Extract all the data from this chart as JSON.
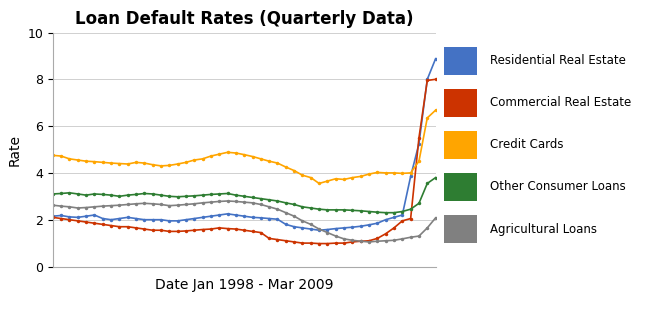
{
  "title": "Loan Default Rates (Quarterly Data)",
  "xlabel": "Date Jan 1998 - Mar 2009",
  "ylabel": "Rate",
  "ylim": [
    0,
    10
  ],
  "yticks": [
    0,
    2,
    4,
    6,
    8,
    10
  ],
  "title_fontsize": 12,
  "xlabel_fontsize": 10,
  "ylabel_fontsize": 10,
  "legend_fontsize": 9,
  "series": {
    "Residential Real Estate": {
      "color": "#4472C4",
      "data": [
        2.15,
        2.18,
        2.12,
        2.1,
        2.15,
        2.2,
        2.05,
        2.0,
        2.05,
        2.1,
        2.05,
        2.0,
        2.0,
        2.0,
        1.95,
        1.95,
        2.0,
        2.05,
        2.1,
        2.15,
        2.2,
        2.25,
        2.2,
        2.15,
        2.1,
        2.08,
        2.05,
        2.02,
        1.8,
        1.7,
        1.65,
        1.6,
        1.55,
        1.58,
        1.62,
        1.65,
        1.68,
        1.72,
        1.78,
        1.85,
        2.0,
        2.1,
        2.2,
        3.85,
        5.25,
        8.0,
        8.88
      ]
    },
    "Commercial Real Estate": {
      "color": "#CC3300",
      "data": [
        2.1,
        2.05,
        2.0,
        1.95,
        1.9,
        1.85,
        1.8,
        1.75,
        1.7,
        1.7,
        1.65,
        1.6,
        1.55,
        1.55,
        1.5,
        1.5,
        1.52,
        1.55,
        1.58,
        1.6,
        1.65,
        1.62,
        1.6,
        1.55,
        1.5,
        1.45,
        1.2,
        1.15,
        1.1,
        1.05,
        1.0,
        1.0,
        0.98,
        0.98,
        1.0,
        1.0,
        1.05,
        1.08,
        1.1,
        1.2,
        1.4,
        1.65,
        1.95,
        2.05,
        5.5,
        7.95,
        8.0
      ]
    },
    "Credit Cards": {
      "color": "#FFA500",
      "data": [
        4.75,
        4.72,
        4.6,
        4.55,
        4.5,
        4.48,
        4.45,
        4.42,
        4.4,
        4.38,
        4.45,
        4.42,
        4.35,
        4.3,
        4.32,
        4.38,
        4.45,
        4.55,
        4.6,
        4.72,
        4.8,
        4.88,
        4.85,
        4.78,
        4.7,
        4.6,
        4.5,
        4.42,
        4.25,
        4.1,
        3.9,
        3.8,
        3.55,
        3.65,
        3.75,
        3.72,
        3.8,
        3.85,
        3.95,
        4.02,
        4.0,
        4.0,
        3.98,
        4.0,
        4.5,
        6.35,
        6.68
      ]
    },
    "Other Consumer Loans": {
      "color": "#2E7D32",
      "data": [
        3.1,
        3.12,
        3.15,
        3.1,
        3.05,
        3.1,
        3.08,
        3.05,
        3.0,
        3.05,
        3.08,
        3.12,
        3.1,
        3.05,
        3.0,
        2.98,
        3.0,
        3.02,
        3.05,
        3.08,
        3.1,
        3.12,
        3.05,
        3.0,
        2.95,
        2.9,
        2.85,
        2.8,
        2.72,
        2.65,
        2.55,
        2.5,
        2.45,
        2.42,
        2.42,
        2.42,
        2.4,
        2.38,
        2.35,
        2.32,
        2.3,
        2.3,
        2.35,
        2.45,
        2.7,
        3.55,
        3.8
      ]
    },
    "Agricultural Loans": {
      "color": "#808080",
      "data": [
        2.62,
        2.58,
        2.55,
        2.5,
        2.52,
        2.55,
        2.58,
        2.6,
        2.62,
        2.65,
        2.68,
        2.7,
        2.68,
        2.65,
        2.6,
        2.62,
        2.65,
        2.68,
        2.72,
        2.75,
        2.78,
        2.8,
        2.78,
        2.75,
        2.72,
        2.65,
        2.55,
        2.45,
        2.3,
        2.15,
        1.95,
        1.8,
        1.6,
        1.45,
        1.3,
        1.18,
        1.12,
        1.08,
        1.05,
        1.08,
        1.1,
        1.12,
        1.18,
        1.25,
        1.3,
        1.65,
        2.08
      ]
    }
  }
}
